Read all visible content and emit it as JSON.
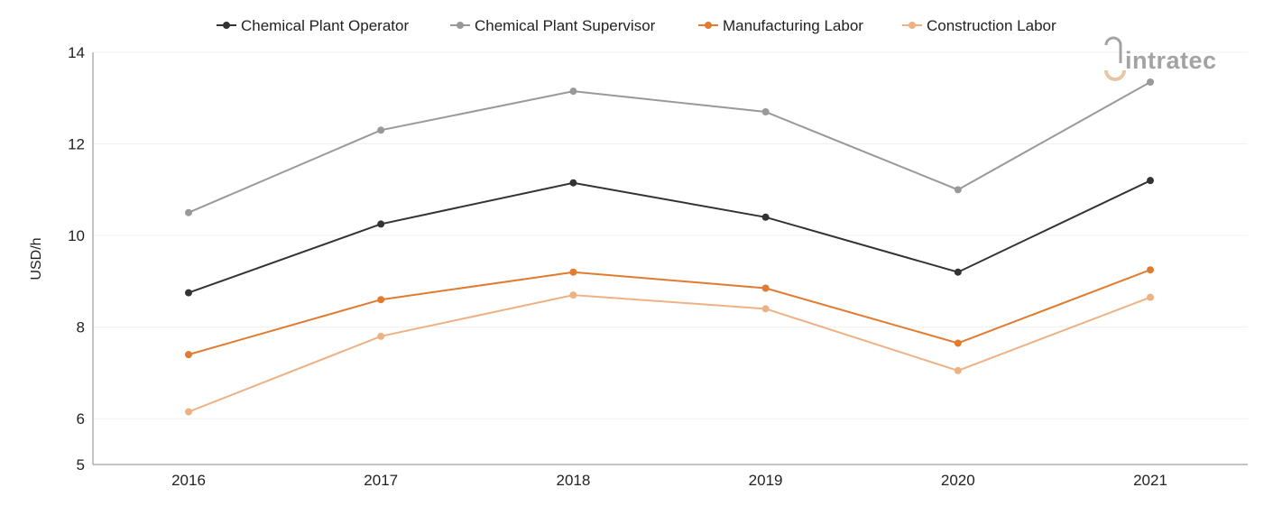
{
  "chart_data": {
    "type": "line",
    "title": "",
    "xlabel": "",
    "ylabel": "USD/h",
    "ylim": [
      5,
      14
    ],
    "yticks": [
      5,
      6,
      8,
      10,
      12,
      14
    ],
    "grid": true,
    "legend_position": "top-center",
    "categories": [
      "2016",
      "2017",
      "2018",
      "2019",
      "2020",
      "2021"
    ],
    "series": [
      {
        "name": "Chemical Plant Operator",
        "color": "#333333",
        "values": [
          8.75,
          10.25,
          11.15,
          10.4,
          9.2,
          11.2
        ]
      },
      {
        "name": "Chemical Plant Supervisor",
        "color": "#999999",
        "values": [
          10.5,
          12.3,
          13.15,
          12.7,
          11.0,
          13.35
        ]
      },
      {
        "name": "Manufacturing Labor",
        "color": "#e07b2f",
        "values": [
          7.4,
          8.6,
          9.2,
          8.85,
          7.65,
          9.25
        ]
      },
      {
        "name": "Construction Labor",
        "color": "#eeb184",
        "values": [
          6.15,
          7.8,
          8.7,
          8.4,
          7.05,
          8.65
        ]
      }
    ]
  },
  "watermark": {
    "text": "intratec",
    "icon": "intratec-logo-icon",
    "color": "#a3a3a3",
    "accent": "#e7c7a6"
  }
}
